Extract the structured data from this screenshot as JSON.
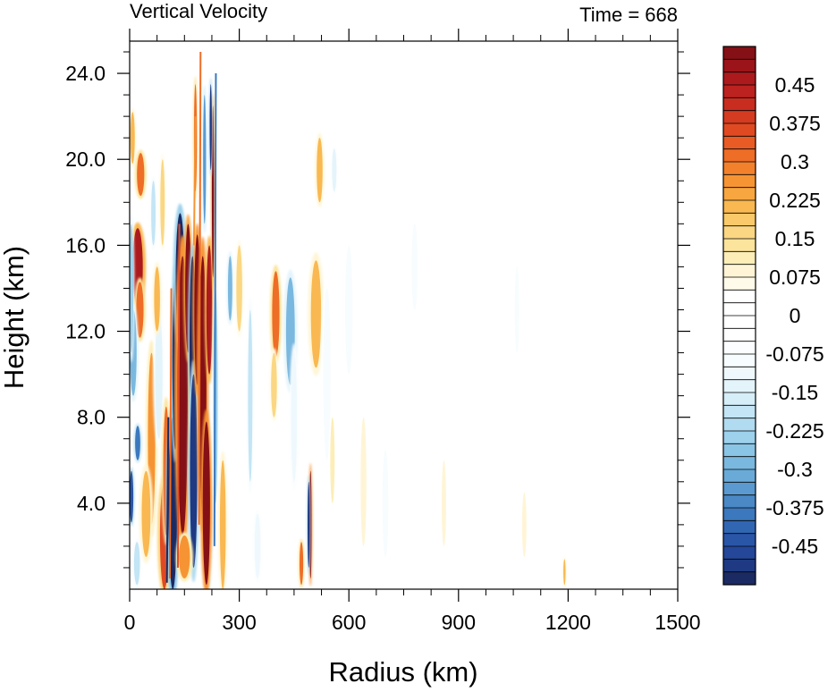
{
  "chart_data": {
    "type": "heatmap",
    "title": "Vertical Velocity",
    "subtitle": "Time = 668",
    "xlabel": "Radius (km)",
    "ylabel": "Height (km)",
    "xlim": [
      0,
      1500
    ],
    "ylim": [
      0,
      25.5
    ],
    "x_ticks": [
      0,
      300,
      600,
      900,
      1200,
      1500
    ],
    "x_tick_labels": [
      "0",
      "300",
      "600",
      "900",
      "1200",
      "1500"
    ],
    "y_ticks": [
      4,
      8,
      12,
      16,
      20,
      24
    ],
    "y_tick_labels": [
      "4.0",
      "8.0",
      "12.0",
      "16.0",
      "20.0",
      "24.0"
    ],
    "colorbar": {
      "levels": [
        -0.525,
        -0.5,
        -0.475,
        -0.45,
        -0.425,
        -0.4,
        -0.375,
        -0.35,
        -0.325,
        -0.3,
        -0.275,
        -0.25,
        -0.225,
        -0.2,
        -0.175,
        -0.15,
        -0.125,
        -0.1,
        -0.075,
        -0.05,
        -0.025,
        0,
        0.025,
        0.05,
        0.075,
        0.1,
        0.125,
        0.15,
        0.175,
        0.2,
        0.225,
        0.25,
        0.275,
        0.3,
        0.325,
        0.35,
        0.375,
        0.4,
        0.425,
        0.45,
        0.475,
        0.5,
        0.525
      ],
      "labels": [
        "-0.45",
        "-0.375",
        "-0.3",
        "-0.225",
        "-0.15",
        "-0.075",
        "0",
        "0.075",
        "0.15",
        "0.225",
        "0.3",
        "0.375",
        "0.45"
      ],
      "colors": [
        "#1b2a63",
        "#1f3a82",
        "#24479a",
        "#2a56a8",
        "#3166b3",
        "#3b78bd",
        "#4a89c6",
        "#5a9ad0",
        "#6aaad8",
        "#7ab8df",
        "#8bc5e6",
        "#9dd1ec",
        "#b0dbf1",
        "#c3e5f5",
        "#d5eef8",
        "#e4f4fb",
        "#eff9fd",
        "#f7fcfe",
        "#fbfdfe",
        "#ffffff",
        "#ffffff",
        "#ffffff",
        "#ffffff",
        "#fffbeb",
        "#fff5d6",
        "#fdeeb8",
        "#fce49c",
        "#fbd783",
        "#fac96a",
        "#f9b851",
        "#f8a640",
        "#f69434",
        "#f3812c",
        "#ee6d27",
        "#e85b24",
        "#e04a22",
        "#d53b21",
        "#c92d20",
        "#bc221f",
        "#ac1a1d",
        "#9b141a",
        "#851015"
      ]
    },
    "field_description_features": [
      {
        "r": 150,
        "z": 9,
        "w": 0.6
      },
      {
        "r": 200,
        "z": 9,
        "w": 0.6
      },
      {
        "r": 115,
        "z": 8,
        "w": -0.6
      },
      {
        "r": 165,
        "z": 12,
        "w": -0.5
      },
      {
        "r": 30,
        "z": 15,
        "w": 0.35
      },
      {
        "r": 40,
        "z": 11,
        "w": -0.3
      },
      {
        "r": 400,
        "z": 12.5,
        "w": 0.25
      },
      {
        "r": 440,
        "z": 12,
        "w": -0.2
      },
      {
        "r": 500,
        "z": 3,
        "w": 0.6
      }
    ]
  }
}
